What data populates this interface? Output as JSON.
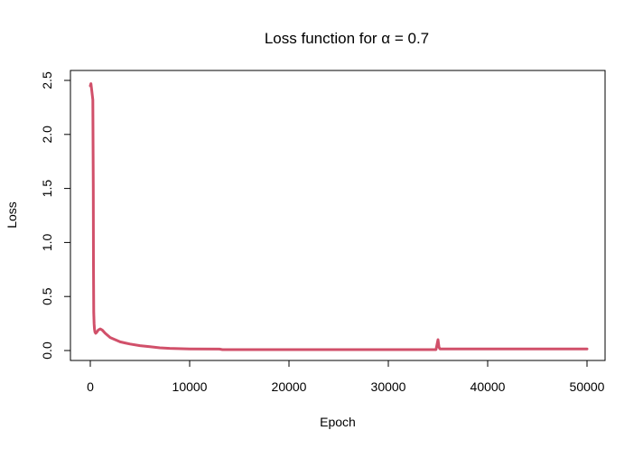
{
  "chart_data": {
    "type": "line",
    "title": "Loss function for α = 0.7",
    "xlabel": "Epoch",
    "ylabel": "Loss",
    "xlim": [
      0,
      50000
    ],
    "ylim": [
      0,
      2.5
    ],
    "xticks": [
      "0",
      "10000",
      "20000",
      "30000",
      "40000",
      "50000"
    ],
    "yticks": [
      "0.0",
      "0.5",
      "1.0",
      "1.5",
      "2.0",
      "2.5"
    ],
    "grid": false,
    "legend": "none",
    "color": "#D1506A",
    "series": [
      {
        "x": [
          0,
          60,
          150,
          250,
          300,
          320,
          350,
          380,
          420,
          470,
          550,
          650,
          800,
          1000,
          1200,
          1500,
          2000,
          2500,
          3000,
          3500,
          4000,
          5000,
          6000,
          7000,
          8000,
          10000,
          13000,
          13300,
          20000,
          30000,
          34800,
          35000,
          35100,
          35200,
          40000,
          50000
        ],
        "y": [
          2.45,
          2.47,
          2.4,
          2.32,
          1.5,
          0.8,
          0.35,
          0.25,
          0.2,
          0.17,
          0.16,
          0.17,
          0.19,
          0.2,
          0.19,
          0.16,
          0.12,
          0.1,
          0.08,
          0.07,
          0.06,
          0.045,
          0.035,
          0.025,
          0.02,
          0.015,
          0.013,
          0.008,
          0.008,
          0.008,
          0.008,
          0.1,
          0.03,
          0.015,
          0.015,
          0.015
        ]
      }
    ]
  }
}
